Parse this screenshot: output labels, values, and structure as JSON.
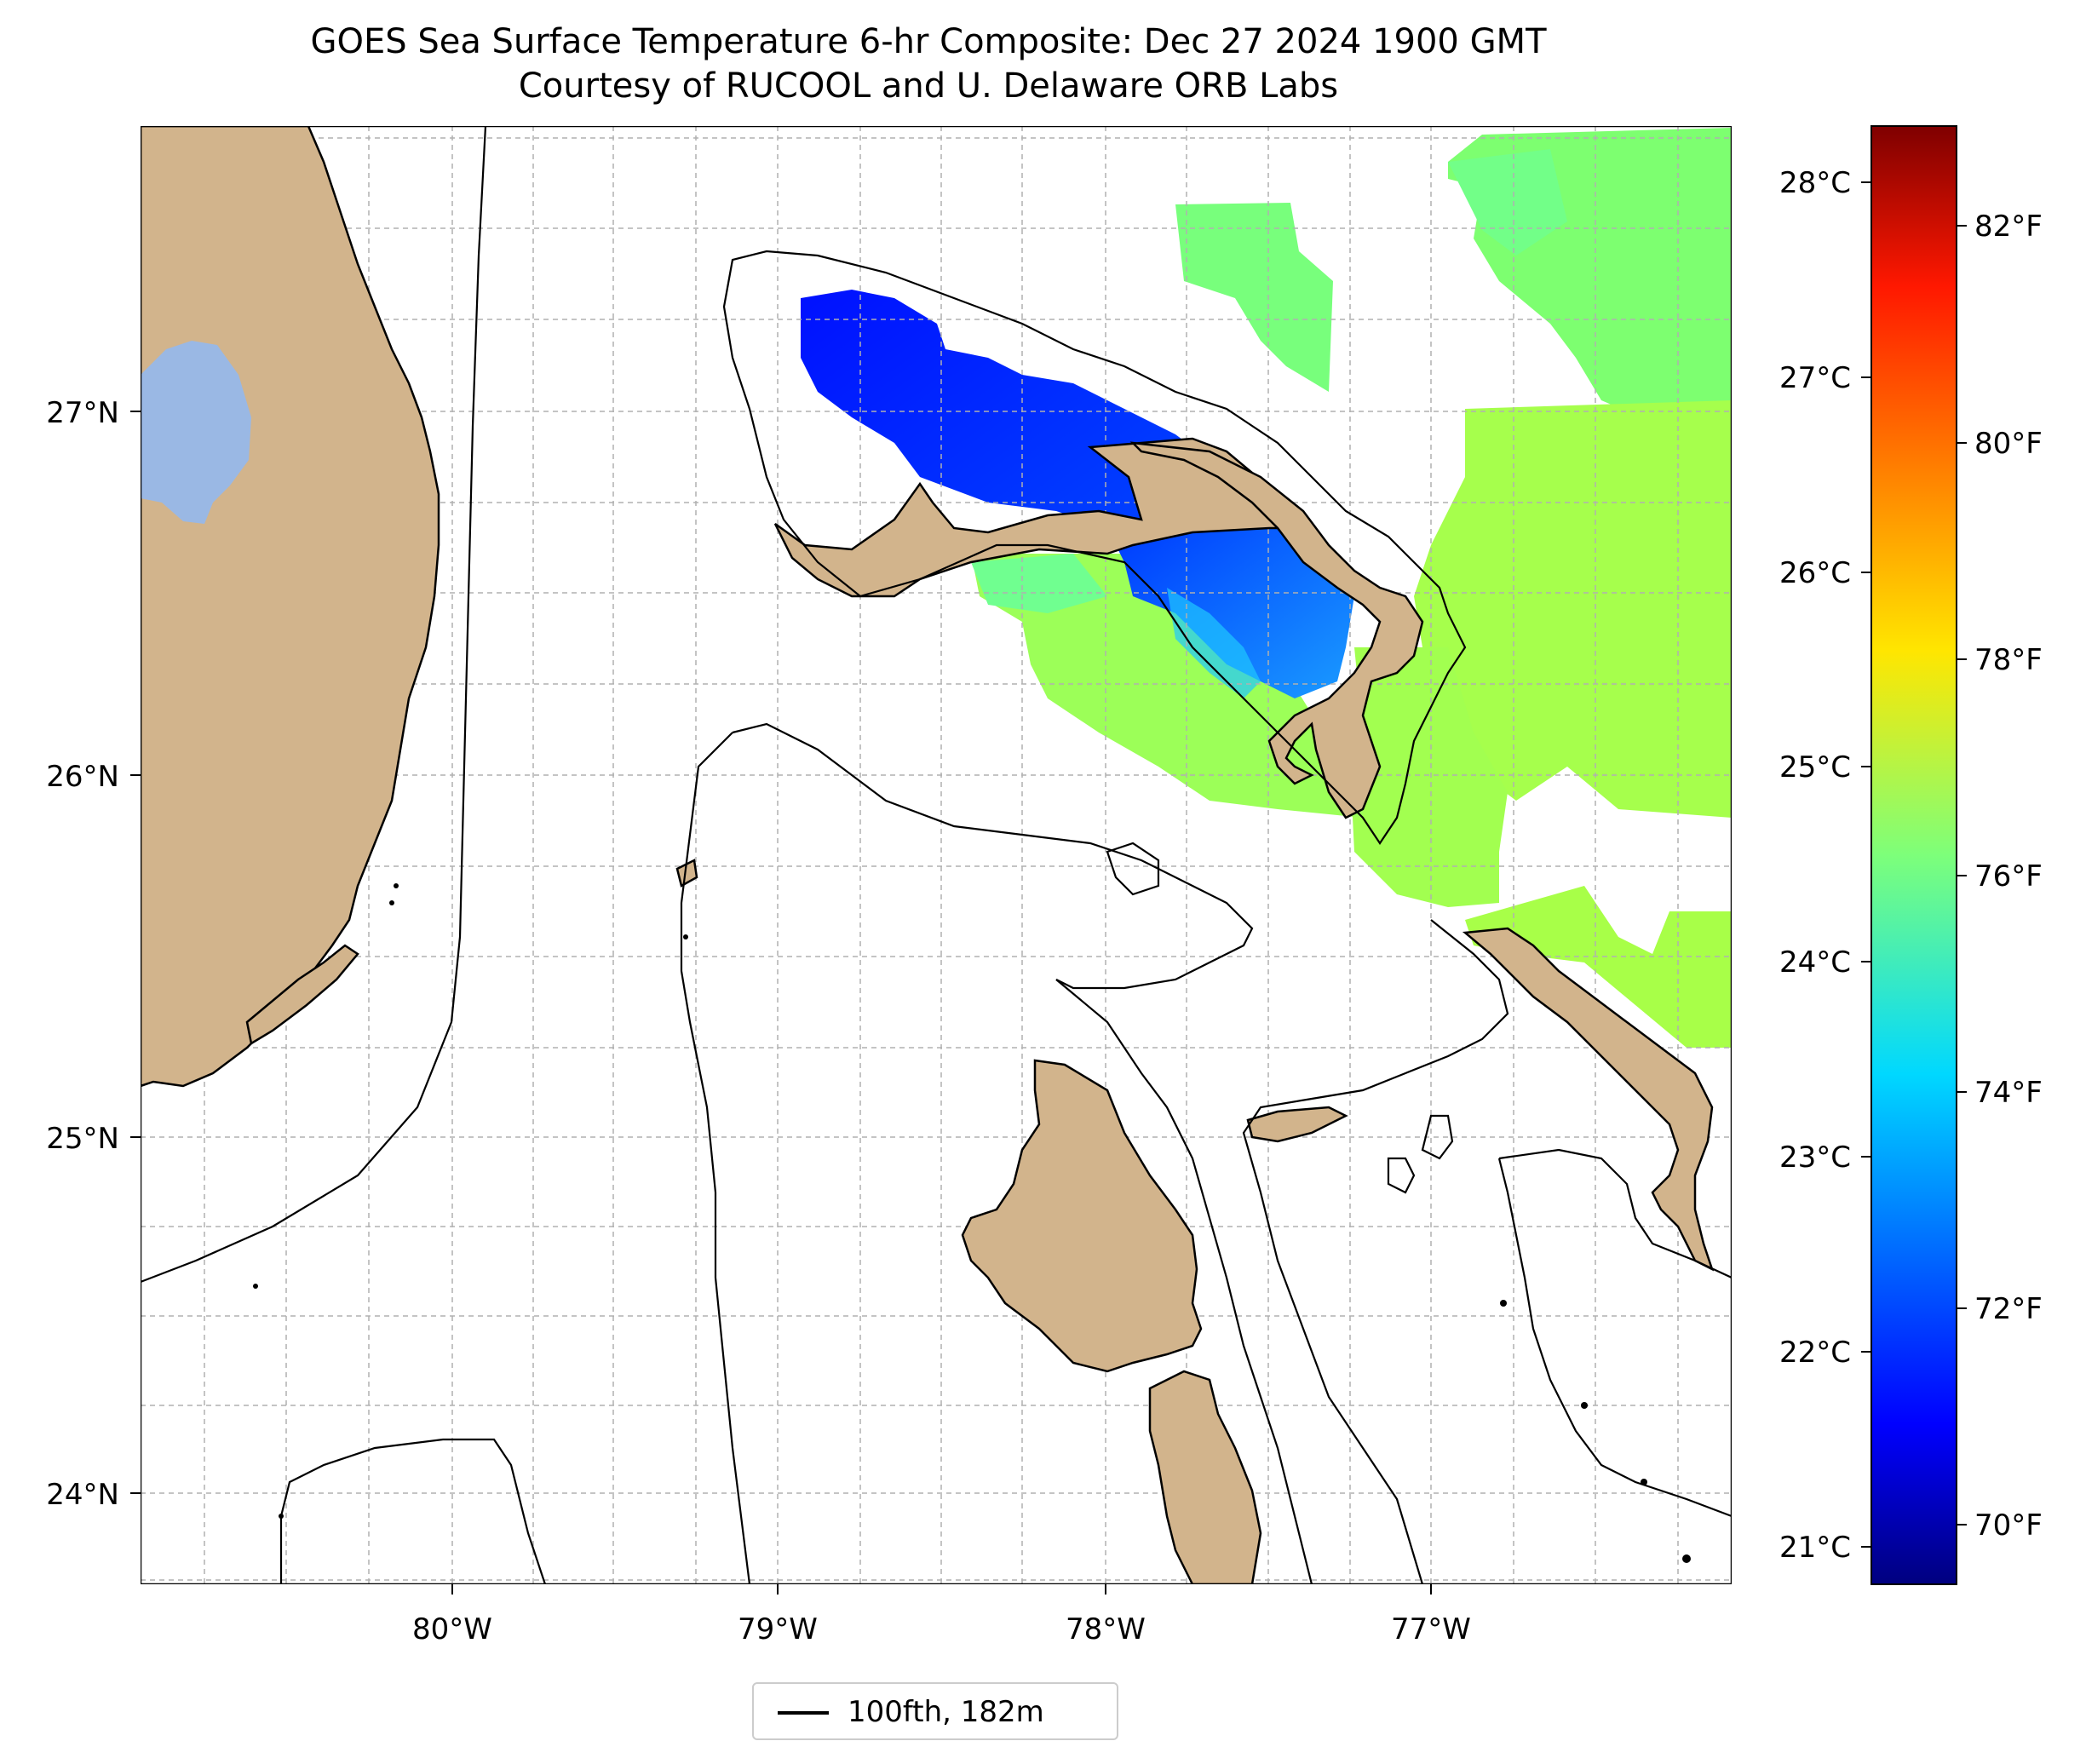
{
  "title": {
    "line1": "GOES Sea Surface Temperature 6-hr Composite: Dec 27 2024 1900 GMT",
    "line2": "Courtesy of RUCOOL and U. Delaware ORB Labs"
  },
  "map": {
    "lon_range": [
      -80.95,
      -76.1
    ],
    "lat_range": [
      23.75,
      27.8
    ],
    "lon_ticks": [
      {
        "value": -80,
        "label": "80°W"
      },
      {
        "value": -79,
        "label": "79°W"
      },
      {
        "value": -78,
        "label": "78°W"
      },
      {
        "value": -77,
        "label": "77°W"
      }
    ],
    "lat_ticks": [
      {
        "value": 24,
        "label": "24°N"
      },
      {
        "value": 25,
        "label": "25°N"
      },
      {
        "value": 26,
        "label": "26°N"
      },
      {
        "value": 27,
        "label": "27°N"
      }
    ],
    "grid": true,
    "land_color": "#d2b48c",
    "lake_color": "#9ab8e4",
    "features": [
      "Florida",
      "Grand Bahama",
      "Great Abaco",
      "Andros",
      "Eleuthera",
      "Lake Okeechobee",
      "100 fathom isobath"
    ]
  },
  "sst": {
    "description_units": "°C / °F",
    "regions": [
      {
        "area": "Northwest Providence Channel north of Grand Bahama",
        "temp_f": 71.5
      },
      {
        "area": "East of Grand Bahama / Little Bahama Bank edge",
        "temp_f": 75.5
      },
      {
        "area": "Northeast Atlantic",
        "temp_f": 76.5
      },
      {
        "area": "South of Grand Bahama",
        "temp_f": 76.8
      },
      {
        "area": "East of Abaco / Eleuthera",
        "temp_f": 77.0
      }
    ]
  },
  "colorbar": {
    "colormap": "jet",
    "c_ticks": [
      "21°C",
      "22°C",
      "23°C",
      "24°C",
      "25°C",
      "26°C",
      "27°C",
      "28°C"
    ],
    "f_ticks": [
      "70°F",
      "72°F",
      "74°F",
      "76°F",
      "78°F",
      "80°F",
      "82°F"
    ],
    "c_range": [
      20.8,
      28.3
    ],
    "f_range": [
      69.44,
      82.94
    ]
  },
  "legend": {
    "entry": "100fth, 182m",
    "line_color": "#000000"
  }
}
